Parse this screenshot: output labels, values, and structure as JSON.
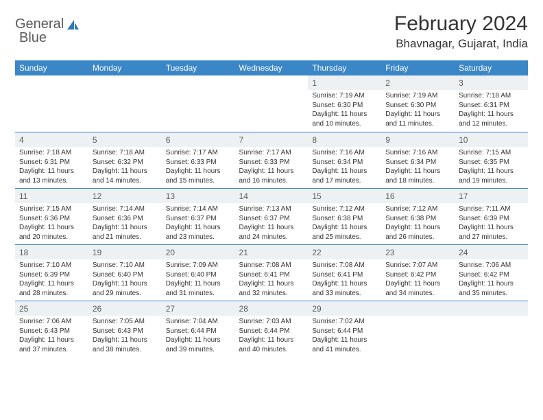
{
  "brand": {
    "part1": "General",
    "part2": "Blue"
  },
  "title": "February 2024",
  "location": "Bhavnagar, Gujarat, India",
  "colors": {
    "header_bg": "#3b86c6",
    "header_text": "#ffffff",
    "daynum_bg": "#eef1f3",
    "row_divider": "#3b86c6",
    "body_text": "#333333",
    "logo_gray": "#5b5b5b",
    "logo_blue": "#2f78b8",
    "background": "#ffffff"
  },
  "typography": {
    "title_fontsize": 30,
    "location_fontsize": 17,
    "dayheader_fontsize": 12,
    "daynum_fontsize": 12,
    "detail_fontsize": 10,
    "font_family": "Arial"
  },
  "calendar": {
    "type": "table",
    "columns": [
      "Sunday",
      "Monday",
      "Tuesday",
      "Wednesday",
      "Thursday",
      "Friday",
      "Saturday"
    ],
    "first_weekday_index": 4,
    "days": [
      {
        "n": 1,
        "sunrise": "7:19 AM",
        "sunset": "6:30 PM",
        "daylight": "11 hours and 10 minutes."
      },
      {
        "n": 2,
        "sunrise": "7:19 AM",
        "sunset": "6:30 PM",
        "daylight": "11 hours and 11 minutes."
      },
      {
        "n": 3,
        "sunrise": "7:18 AM",
        "sunset": "6:31 PM",
        "daylight": "11 hours and 12 minutes."
      },
      {
        "n": 4,
        "sunrise": "7:18 AM",
        "sunset": "6:31 PM",
        "daylight": "11 hours and 13 minutes."
      },
      {
        "n": 5,
        "sunrise": "7:18 AM",
        "sunset": "6:32 PM",
        "daylight": "11 hours and 14 minutes."
      },
      {
        "n": 6,
        "sunrise": "7:17 AM",
        "sunset": "6:33 PM",
        "daylight": "11 hours and 15 minutes."
      },
      {
        "n": 7,
        "sunrise": "7:17 AM",
        "sunset": "6:33 PM",
        "daylight": "11 hours and 16 minutes."
      },
      {
        "n": 8,
        "sunrise": "7:16 AM",
        "sunset": "6:34 PM",
        "daylight": "11 hours and 17 minutes."
      },
      {
        "n": 9,
        "sunrise": "7:16 AM",
        "sunset": "6:34 PM",
        "daylight": "11 hours and 18 minutes."
      },
      {
        "n": 10,
        "sunrise": "7:15 AM",
        "sunset": "6:35 PM",
        "daylight": "11 hours and 19 minutes."
      },
      {
        "n": 11,
        "sunrise": "7:15 AM",
        "sunset": "6:36 PM",
        "daylight": "11 hours and 20 minutes."
      },
      {
        "n": 12,
        "sunrise": "7:14 AM",
        "sunset": "6:36 PM",
        "daylight": "11 hours and 21 minutes."
      },
      {
        "n": 13,
        "sunrise": "7:14 AM",
        "sunset": "6:37 PM",
        "daylight": "11 hours and 23 minutes."
      },
      {
        "n": 14,
        "sunrise": "7:13 AM",
        "sunset": "6:37 PM",
        "daylight": "11 hours and 24 minutes."
      },
      {
        "n": 15,
        "sunrise": "7:12 AM",
        "sunset": "6:38 PM",
        "daylight": "11 hours and 25 minutes."
      },
      {
        "n": 16,
        "sunrise": "7:12 AM",
        "sunset": "6:38 PM",
        "daylight": "11 hours and 26 minutes."
      },
      {
        "n": 17,
        "sunrise": "7:11 AM",
        "sunset": "6:39 PM",
        "daylight": "11 hours and 27 minutes."
      },
      {
        "n": 18,
        "sunrise": "7:10 AM",
        "sunset": "6:39 PM",
        "daylight": "11 hours and 28 minutes."
      },
      {
        "n": 19,
        "sunrise": "7:10 AM",
        "sunset": "6:40 PM",
        "daylight": "11 hours and 29 minutes."
      },
      {
        "n": 20,
        "sunrise": "7:09 AM",
        "sunset": "6:40 PM",
        "daylight": "11 hours and 31 minutes."
      },
      {
        "n": 21,
        "sunrise": "7:08 AM",
        "sunset": "6:41 PM",
        "daylight": "11 hours and 32 minutes."
      },
      {
        "n": 22,
        "sunrise": "7:08 AM",
        "sunset": "6:41 PM",
        "daylight": "11 hours and 33 minutes."
      },
      {
        "n": 23,
        "sunrise": "7:07 AM",
        "sunset": "6:42 PM",
        "daylight": "11 hours and 34 minutes."
      },
      {
        "n": 24,
        "sunrise": "7:06 AM",
        "sunset": "6:42 PM",
        "daylight": "11 hours and 35 minutes."
      },
      {
        "n": 25,
        "sunrise": "7:06 AM",
        "sunset": "6:43 PM",
        "daylight": "11 hours and 37 minutes."
      },
      {
        "n": 26,
        "sunrise": "7:05 AM",
        "sunset": "6:43 PM",
        "daylight": "11 hours and 38 minutes."
      },
      {
        "n": 27,
        "sunrise": "7:04 AM",
        "sunset": "6:44 PM",
        "daylight": "11 hours and 39 minutes."
      },
      {
        "n": 28,
        "sunrise": "7:03 AM",
        "sunset": "6:44 PM",
        "daylight": "11 hours and 40 minutes."
      },
      {
        "n": 29,
        "sunrise": "7:02 AM",
        "sunset": "6:44 PM",
        "daylight": "11 hours and 41 minutes."
      }
    ],
    "labels": {
      "sunrise": "Sunrise:",
      "sunset": "Sunset:",
      "daylight": "Daylight:"
    }
  }
}
